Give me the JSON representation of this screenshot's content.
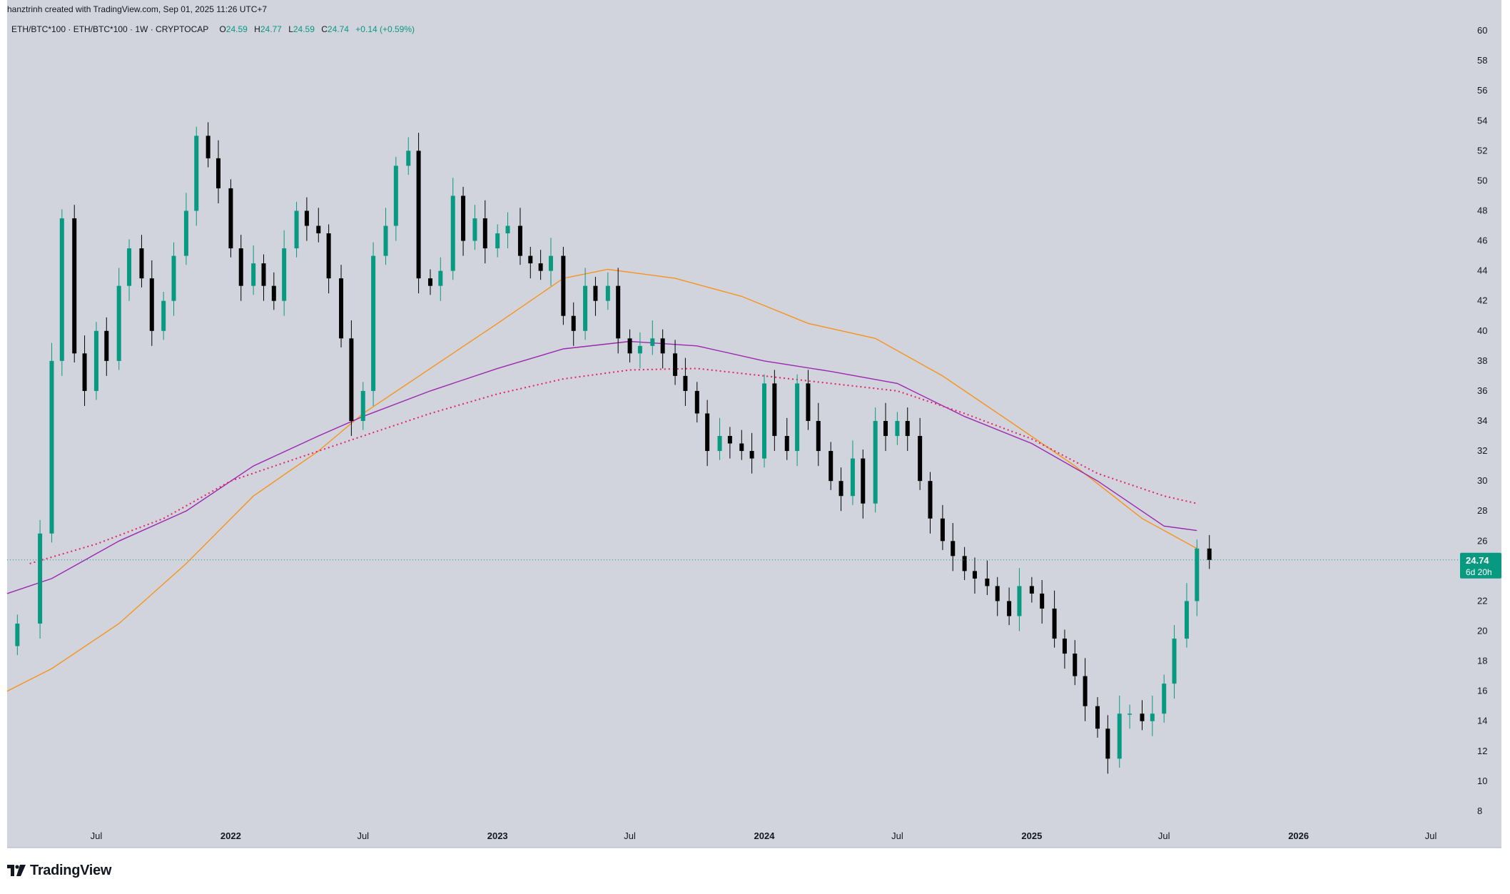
{
  "header": {
    "attribution": "hanztrinh created with TradingView.com, Sep 01, 2025 11:26 UTC+7"
  },
  "legend": {
    "symbol": "ETH/BTC*100 · ETH/BTC*100 · 1W · CRYPTOCAP",
    "open_label": "O",
    "open": "24.59",
    "high_label": "H",
    "high": "24.77",
    "low_label": "L",
    "low": "24.59",
    "close_label": "C",
    "close": "24.74",
    "change": "+0.14 (+0.59%)"
  },
  "price_badge": {
    "price": "24.74",
    "countdown": "6d 20h",
    "color": "#089981"
  },
  "footer": {
    "brand": "TradingView"
  },
  "colors": {
    "background": "#d1d4dc",
    "up": "#089981",
    "down": "#000000",
    "ma_orange": "#f7931a",
    "ma_purple": "#9c27b0",
    "ma_red_dotted": "#e91e63"
  },
  "chart_data": {
    "type": "candlestick",
    "interval": "1W",
    "y_axis": {
      "ylim": [
        7,
        61
      ],
      "ticks": [
        60,
        58,
        56,
        54,
        52,
        50,
        48,
        46,
        44,
        42,
        40,
        38,
        36,
        34,
        32,
        30,
        28,
        26,
        22,
        20,
        18,
        16,
        14,
        12,
        10,
        8
      ],
      "side": "right"
    },
    "x_axis": {
      "ticks": [
        "Jul",
        "2022",
        "Jul",
        "2023",
        "Jul",
        "2024",
        "Jul",
        "2025",
        "Jul",
        "2026",
        "Jul"
      ],
      "bold_ticks": [
        "2022",
        "2023",
        "2024",
        "2025",
        "2026"
      ],
      "tick_dates": [
        "2021-07-01",
        "2022-01-01",
        "2022-07-01",
        "2023-01-01",
        "2023-07-01",
        "2024-01-01",
        "2024-07-01",
        "2025-01-01",
        "2025-07-01",
        "2026-01-01",
        "2026-07-01"
      ]
    },
    "last_price_line": 24.74,
    "candle_closes": [
      {
        "date": "2021-03-15",
        "close": 20.5
      },
      {
        "date": "2021-04-15",
        "close": 26.5
      },
      {
        "date": "2021-05-01",
        "close": 38.0
      },
      {
        "date": "2021-05-15",
        "close": 47.5
      },
      {
        "date": "2021-06-01",
        "close": 38.5
      },
      {
        "date": "2021-06-15",
        "close": 36.0
      },
      {
        "date": "2021-07-01",
        "close": 40.0
      },
      {
        "date": "2021-07-15",
        "close": 38.0
      },
      {
        "date": "2021-08-01",
        "close": 43.0
      },
      {
        "date": "2021-08-15",
        "close": 45.5
      },
      {
        "date": "2021-09-01",
        "close": 43.5
      },
      {
        "date": "2021-09-15",
        "close": 40.0
      },
      {
        "date": "2021-10-01",
        "close": 42.0
      },
      {
        "date": "2021-10-15",
        "close": 45.0
      },
      {
        "date": "2021-11-01",
        "close": 48.0
      },
      {
        "date": "2021-11-15",
        "close": 53.0
      },
      {
        "date": "2021-12-01",
        "close": 51.5
      },
      {
        "date": "2021-12-15",
        "close": 49.5
      },
      {
        "date": "2022-01-01",
        "close": 45.5
      },
      {
        "date": "2022-01-15",
        "close": 43.0
      },
      {
        "date": "2022-02-01",
        "close": 44.5
      },
      {
        "date": "2022-02-15",
        "close": 43.0
      },
      {
        "date": "2022-03-01",
        "close": 42.0
      },
      {
        "date": "2022-03-15",
        "close": 45.5
      },
      {
        "date": "2022-04-01",
        "close": 48.0
      },
      {
        "date": "2022-04-15",
        "close": 47.0
      },
      {
        "date": "2022-05-01",
        "close": 46.5
      },
      {
        "date": "2022-05-15",
        "close": 43.5
      },
      {
        "date": "2022-06-01",
        "close": 39.5
      },
      {
        "date": "2022-06-15",
        "close": 34.0
      },
      {
        "date": "2022-07-01",
        "close": 36.0
      },
      {
        "date": "2022-07-15",
        "close": 45.0
      },
      {
        "date": "2022-08-01",
        "close": 47.0
      },
      {
        "date": "2022-08-15",
        "close": 51.0
      },
      {
        "date": "2022-09-01",
        "close": 52.0
      },
      {
        "date": "2022-09-15",
        "close": 43.5
      },
      {
        "date": "2022-10-01",
        "close": 43.0
      },
      {
        "date": "2022-10-15",
        "close": 44.0
      },
      {
        "date": "2022-11-01",
        "close": 49.0
      },
      {
        "date": "2022-11-15",
        "close": 46.0
      },
      {
        "date": "2022-12-01",
        "close": 47.5
      },
      {
        "date": "2022-12-15",
        "close": 45.5
      },
      {
        "date": "2023-01-01",
        "close": 46.5
      },
      {
        "date": "2023-01-15",
        "close": 47.0
      },
      {
        "date": "2023-02-01",
        "close": 45.0
      },
      {
        "date": "2023-02-15",
        "close": 44.5
      },
      {
        "date": "2023-03-01",
        "close": 44.0
      },
      {
        "date": "2023-03-15",
        "close": 45.0
      },
      {
        "date": "2023-04-01",
        "close": 41.0
      },
      {
        "date": "2023-04-15",
        "close": 40.0
      },
      {
        "date": "2023-05-01",
        "close": 43.0
      },
      {
        "date": "2023-05-15",
        "close": 42.0
      },
      {
        "date": "2023-06-01",
        "close": 43.0
      },
      {
        "date": "2023-06-15",
        "close": 39.5
      },
      {
        "date": "2023-07-01",
        "close": 38.5
      },
      {
        "date": "2023-07-15",
        "close": 39.0
      },
      {
        "date": "2023-08-01",
        "close": 39.5
      },
      {
        "date": "2023-08-15",
        "close": 38.5
      },
      {
        "date": "2023-09-01",
        "close": 37.0
      },
      {
        "date": "2023-09-15",
        "close": 36.0
      },
      {
        "date": "2023-10-01",
        "close": 34.5
      },
      {
        "date": "2023-10-15",
        "close": 32.0
      },
      {
        "date": "2023-11-01",
        "close": 33.0
      },
      {
        "date": "2023-11-15",
        "close": 32.5
      },
      {
        "date": "2023-12-01",
        "close": 32.0
      },
      {
        "date": "2023-12-15",
        "close": 31.5
      },
      {
        "date": "2024-01-01",
        "close": 36.5
      },
      {
        "date": "2024-01-15",
        "close": 33.0
      },
      {
        "date": "2024-02-01",
        "close": 32.0
      },
      {
        "date": "2024-02-15",
        "close": 36.5
      },
      {
        "date": "2024-03-01",
        "close": 34.0
      },
      {
        "date": "2024-03-15",
        "close": 32.0
      },
      {
        "date": "2024-04-01",
        "close": 30.0
      },
      {
        "date": "2024-04-15",
        "close": 29.0
      },
      {
        "date": "2024-05-01",
        "close": 31.5
      },
      {
        "date": "2024-05-15",
        "close": 28.5
      },
      {
        "date": "2024-06-01",
        "close": 34.0
      },
      {
        "date": "2024-06-15",
        "close": 33.0
      },
      {
        "date": "2024-07-01",
        "close": 34.0
      },
      {
        "date": "2024-07-15",
        "close": 33.0
      },
      {
        "date": "2024-08-01",
        "close": 30.0
      },
      {
        "date": "2024-08-15",
        "close": 27.5
      },
      {
        "date": "2024-09-01",
        "close": 26.0
      },
      {
        "date": "2024-09-15",
        "close": 25.0
      },
      {
        "date": "2024-10-01",
        "close": 24.0
      },
      {
        "date": "2024-10-15",
        "close": 23.5
      },
      {
        "date": "2024-11-01",
        "close": 23.0
      },
      {
        "date": "2024-11-15",
        "close": 22.0
      },
      {
        "date": "2024-12-01",
        "close": 21.0
      },
      {
        "date": "2024-12-15",
        "close": 23.0
      },
      {
        "date": "2025-01-01",
        "close": 22.5
      },
      {
        "date": "2025-01-15",
        "close": 21.5
      },
      {
        "date": "2025-02-01",
        "close": 19.5
      },
      {
        "date": "2025-02-15",
        "close": 18.5
      },
      {
        "date": "2025-03-01",
        "close": 17.0
      },
      {
        "date": "2025-03-15",
        "close": 15.0
      },
      {
        "date": "2025-04-01",
        "close": 13.5
      },
      {
        "date": "2025-04-15",
        "close": 11.5
      },
      {
        "date": "2025-05-01",
        "close": 14.5
      },
      {
        "date": "2025-05-15",
        "close": 14.5
      },
      {
        "date": "2025-06-01",
        "close": 14.0
      },
      {
        "date": "2025-06-15",
        "close": 14.5
      },
      {
        "date": "2025-07-01",
        "close": 16.5
      },
      {
        "date": "2025-07-15",
        "close": 19.5
      },
      {
        "date": "2025-08-01",
        "close": 22.0
      },
      {
        "date": "2025-08-15",
        "close": 25.5
      },
      {
        "date": "2025-09-01",
        "close": 24.74
      }
    ],
    "series": [
      {
        "type": "line",
        "color": "#f7931a",
        "style": "solid",
        "points": [
          {
            "date": "2021-03-01",
            "y": 16.0
          },
          {
            "date": "2021-05-01",
            "y": 17.5
          },
          {
            "date": "2021-08-01",
            "y": 20.5
          },
          {
            "date": "2021-11-01",
            "y": 24.5
          },
          {
            "date": "2022-02-01",
            "y": 29.0
          },
          {
            "date": "2022-05-01",
            "y": 32.0
          },
          {
            "date": "2022-07-01",
            "y": 34.5
          },
          {
            "date": "2022-10-01",
            "y": 37.5
          },
          {
            "date": "2023-01-01",
            "y": 40.5
          },
          {
            "date": "2023-04-01",
            "y": 43.5
          },
          {
            "date": "2023-06-01",
            "y": 44.1
          },
          {
            "date": "2023-09-01",
            "y": 43.5
          },
          {
            "date": "2023-12-01",
            "y": 42.3
          },
          {
            "date": "2024-03-01",
            "y": 40.5
          },
          {
            "date": "2024-06-01",
            "y": 39.5
          },
          {
            "date": "2024-09-01",
            "y": 37.0
          },
          {
            "date": "2024-12-01",
            "y": 34.0
          },
          {
            "date": "2025-03-01",
            "y": 31.0
          },
          {
            "date": "2025-06-01",
            "y": 27.5
          },
          {
            "date": "2025-08-15",
            "y": 25.5
          }
        ]
      },
      {
        "type": "step-line",
        "color": "#9c27b0",
        "style": "solid",
        "points": [
          {
            "date": "2021-03-01",
            "y": 22.5
          },
          {
            "date": "2021-05-01",
            "y": 23.5
          },
          {
            "date": "2021-08-01",
            "y": 26.0
          },
          {
            "date": "2021-11-01",
            "y": 28.0
          },
          {
            "date": "2022-02-01",
            "y": 31.0
          },
          {
            "date": "2022-05-01",
            "y": 33.0
          },
          {
            "date": "2022-07-01",
            "y": 34.3
          },
          {
            "date": "2022-10-01",
            "y": 36.0
          },
          {
            "date": "2023-01-01",
            "y": 37.5
          },
          {
            "date": "2023-04-01",
            "y": 38.8
          },
          {
            "date": "2023-07-01",
            "y": 39.3
          },
          {
            "date": "2023-10-01",
            "y": 39.0
          },
          {
            "date": "2024-01-01",
            "y": 38.0
          },
          {
            "date": "2024-04-01",
            "y": 37.3
          },
          {
            "date": "2024-07-01",
            "y": 36.5
          },
          {
            "date": "2024-10-01",
            "y": 34.3
          },
          {
            "date": "2025-01-01",
            "y": 32.5
          },
          {
            "date": "2025-04-01",
            "y": 30.0
          },
          {
            "date": "2025-07-01",
            "y": 27.0
          },
          {
            "date": "2025-08-15",
            "y": 26.7
          }
        ]
      },
      {
        "type": "line",
        "color": "#e91e63",
        "style": "dotted",
        "points": [
          {
            "date": "2021-04-01",
            "y": 24.5
          },
          {
            "date": "2021-07-01",
            "y": 25.8
          },
          {
            "date": "2021-10-01",
            "y": 27.5
          },
          {
            "date": "2022-01-01",
            "y": 30.0
          },
          {
            "date": "2022-04-01",
            "y": 31.5
          },
          {
            "date": "2022-07-01",
            "y": 33.0
          },
          {
            "date": "2022-10-01",
            "y": 34.5
          },
          {
            "date": "2023-01-01",
            "y": 35.8
          },
          {
            "date": "2023-04-01",
            "y": 36.8
          },
          {
            "date": "2023-07-01",
            "y": 37.4
          },
          {
            "date": "2023-10-01",
            "y": 37.5
          },
          {
            "date": "2024-01-01",
            "y": 37.0
          },
          {
            "date": "2024-04-01",
            "y": 36.5
          },
          {
            "date": "2024-07-01",
            "y": 36.0
          },
          {
            "date": "2024-10-01",
            "y": 34.5
          },
          {
            "date": "2025-01-01",
            "y": 32.8
          },
          {
            "date": "2025-04-01",
            "y": 30.5
          },
          {
            "date": "2025-07-01",
            "y": 29.0
          },
          {
            "date": "2025-08-15",
            "y": 28.5
          }
        ]
      }
    ]
  }
}
